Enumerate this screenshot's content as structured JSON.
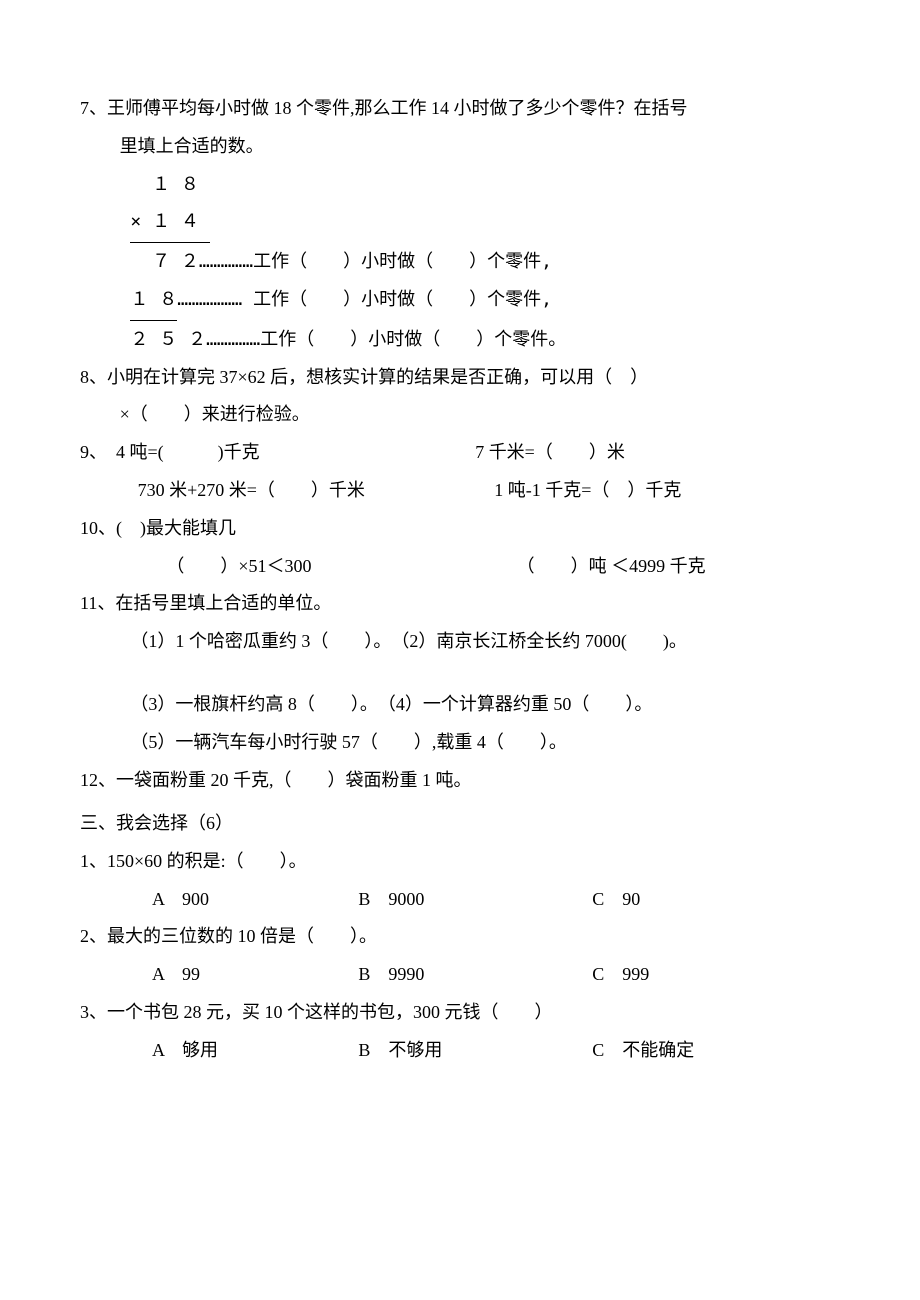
{
  "q7": {
    "stem_l1": "7、王师傅平均每小时做 18 个零件,那么工作 14 小时做了多少个零件？在括号",
    "stem_l2": "里填上合适的数。",
    "calc_top": "  １ ８",
    "calc_mult": "× １ ４ ",
    "calc_p1": "  ７ ２……………工作（　　）小时做（　　）个零件,",
    "calc_p2_left": "１ ８",
    "calc_p2_rest": "……………… 工作（　　）小时做（　　）个零件,",
    "calc_sum": "２ ５ ２……………工作（　　）小时做（　　）个零件。"
  },
  "q8": {
    "l1": "8、小明在计算完 37×62 后，想核实计算的结果是否正确，可以用（　）",
    "l2": "×（　　）来进行检验。"
  },
  "q9": {
    "stem": "9、",
    "r1a": "　4 吨=(　　　)千克",
    "r1b": "7 千米=（　　）米",
    "r2a": "　730 米+270 米=（　　）千米",
    "r2b": "1 吨-1 千克=（　）千克"
  },
  "q10": {
    "stem": "10、(　)最大能填几",
    "r1a": "（　　）×51＜300",
    "r1b": "（　　）吨 ＜4999 千克"
  },
  "q11": {
    "stem": "11、在括号里填上合适的单位。",
    "r1": "（1）1 个哈密瓜重约 3（　　）。　（2）南京长江桥全长约 7000(　　)。",
    "r2": "（3）一根旗杆约高 8（　　）。　（4）一个计算器约重 50（　　）。",
    "r3": "（5）一辆汽车每小时行驶 57（　　）,载重 4（　　）。"
  },
  "q12": "12、一袋面粉重 20 千克,（　　）袋面粉重 1 吨。",
  "section3": "三、我会选择（6）",
  "s3q1": {
    "stem": "1、150×60 的积是:（　　）。",
    "a": "A　900",
    "b": "B　9000",
    "c": "C　90"
  },
  "s3q2": {
    "stem": "2、最大的三位数的 10 倍是（　　）。",
    "a": "A　99",
    "b": "B　9990",
    "c": "C　999"
  },
  "s3q3": {
    "stem": "3、一个书包 28 元，买 10 个这样的书包，300 元钱（　　）",
    "a": "A　够用",
    "b": "B　不够用",
    "c": "C　不能确定"
  }
}
